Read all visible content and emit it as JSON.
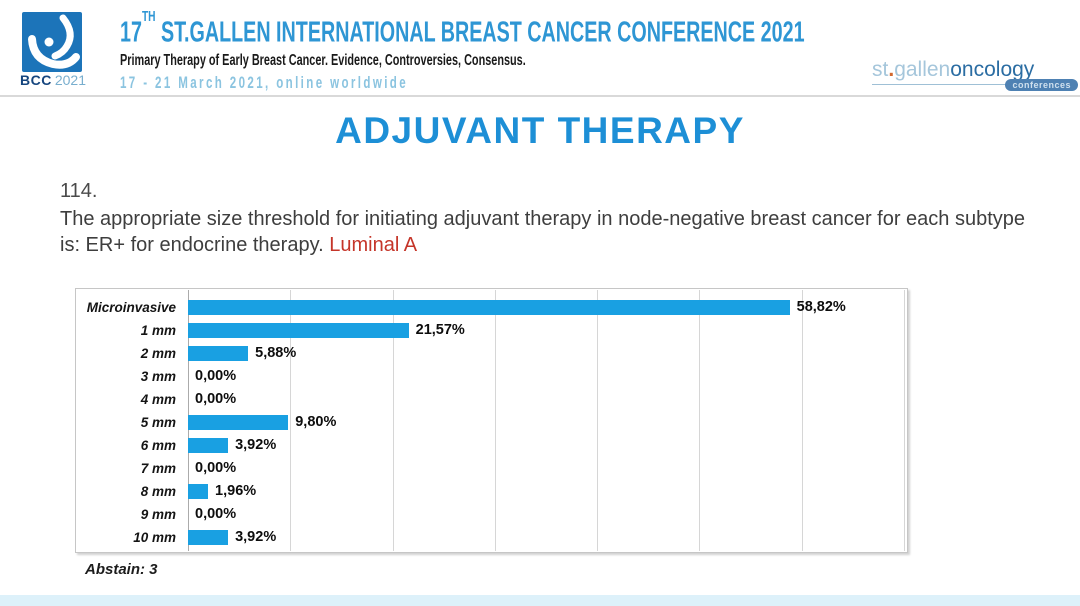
{
  "header": {
    "logo": {
      "bcc": "BCC",
      "year": "2021"
    },
    "title_prefix": "17",
    "title_superscript": "TH",
    "title_rest": " ST.GALLEN INTERNATIONAL BREAST CANCER CONFERENCE 2021",
    "subtitle": "Primary Therapy of Early Breast Cancer. Evidence, Controversies, Consensus.",
    "dates": "17 - 21 March 2021, online worldwide",
    "brand": {
      "st": "st",
      "dot": ".",
      "gallen": "gallen",
      "oncology": "oncology",
      "badge": "conferences"
    }
  },
  "slide": {
    "title": "ADJUVANT THERAPY",
    "question_number": "114.",
    "question_text": "The appropriate size threshold for initiating adjuvant therapy in node-negative breast cancer for each subtype is: ER+ for endocrine therapy. ",
    "question_highlight": "Luminal A",
    "abstain": "Abstain: 3"
  },
  "chart_data": {
    "type": "bar",
    "orientation": "horizontal",
    "title": "",
    "xlabel": "",
    "ylabel": "",
    "categories": [
      "Microinvasive",
      "1 mm",
      "2 mm",
      "3 mm",
      "4 mm",
      "5 mm",
      "6 mm",
      "7 mm",
      "8 mm",
      "9 mm",
      "10 mm"
    ],
    "values": [
      58.82,
      21.57,
      5.88,
      0.0,
      0.0,
      9.8,
      3.92,
      0.0,
      1.96,
      0.0,
      3.92
    ],
    "value_labels": [
      "58,82%",
      "21,57%",
      "5,88%",
      "0,00%",
      "0,00%",
      "9,80%",
      "3,92%",
      "0,00%",
      "1,96%",
      "0,00%",
      "3,92%"
    ],
    "xlim": [
      0,
      70
    ],
    "gridline_step": 10,
    "grid": "vertical",
    "legend": "none",
    "bar_color": "#19a0e2"
  },
  "colors": {
    "header_title": "#2e96d4",
    "dates": "#8bc4e0",
    "slide_title": "#1d8fd6",
    "highlight_red": "#c53529",
    "bar_blue": "#19a0e2",
    "logo_blue": "#1c74b9"
  }
}
